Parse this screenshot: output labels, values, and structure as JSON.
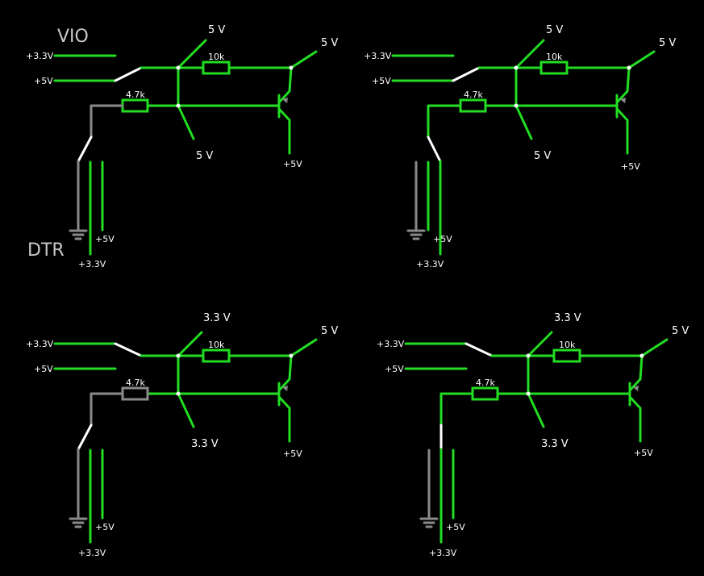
{
  "labels": {
    "vio": "VIO",
    "dtr": "DTR"
  },
  "colors": {
    "active_wire": "#22dd22",
    "inactive_wire": "#8a8a8a",
    "switch": "#ffffff",
    "background": "#000000"
  },
  "panels": [
    {
      "rail_33": "+3.3V",
      "rail_5": "+5V",
      "r_top": "10k",
      "r_base": "4.7k",
      "supply_top": "5 V",
      "supply_low": "5 V",
      "supply_right": "5 V",
      "emitter_out": "+5V",
      "out_5": "+5V",
      "out_33": "+3.3V"
    },
    {
      "rail_33": "+3.3V",
      "rail_5": "+5V",
      "r_top": "10k",
      "r_base": "4.7k",
      "supply_top": "5 V",
      "supply_low": "5 V",
      "supply_right": "5 V",
      "emitter_out": "+5V",
      "out_5": "+5V",
      "out_33": "+3.3V"
    },
    {
      "rail_33": "+3.3V",
      "rail_5": "+5V",
      "r_top": "10k",
      "r_base": "4.7k",
      "supply_top": "3.3 V",
      "supply_low": "3.3 V",
      "supply_right": "5 V",
      "emitter_out": "+5V",
      "out_5": "+5V",
      "out_33": "+3.3V"
    },
    {
      "rail_33": "+3.3V",
      "rail_5": "+5V",
      "r_top": "10k",
      "r_base": "4.7k",
      "supply_top": "3.3 V",
      "supply_low": "3.3 V",
      "supply_right": "5 V",
      "emitter_out": "+5V",
      "out_5": "+5V",
      "out_33": "+3.3V"
    }
  ]
}
